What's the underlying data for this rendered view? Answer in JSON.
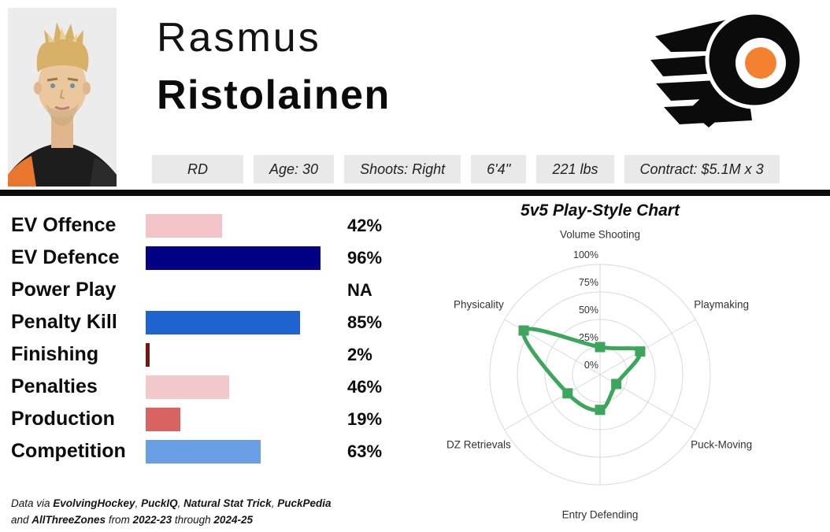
{
  "player": {
    "first_name": "Rasmus",
    "last_name": "Ristolainen",
    "photo": "player-headshot",
    "badges": [
      "RD",
      "Age: 30",
      "Shoots: Right",
      "6'4''",
      "221 lbs",
      "Contract: $5.1M x 3"
    ]
  },
  "team": {
    "logo": "philadelphia-flyers-winged-p",
    "color_black": "#0B0B0B",
    "color_orange": "#F3812F"
  },
  "chart_data": [
    {
      "type": "bar",
      "orientation": "horizontal",
      "title": "",
      "categories": [
        "EV Offence",
        "EV Defence",
        "Power Play",
        "Penalty Kill",
        "Finishing",
        "Penalties",
        "Production",
        "Competition"
      ],
      "values": [
        42,
        96,
        null,
        85,
        2,
        46,
        19,
        63
      ],
      "value_labels": [
        "42%",
        "96%",
        "NA",
        "85%",
        "2%",
        "46%",
        "19%",
        "63%"
      ],
      "bar_colors": [
        "#F2C4C8",
        "#010085",
        "",
        "#1F63D1",
        "#7A120D",
        "#F3CACC",
        "#D96262",
        "#699FE5"
      ],
      "xlim": [
        0,
        100
      ],
      "unit": "percentile",
      "grid": false
    },
    {
      "type": "radar",
      "title": "5v5 Play-Style Chart",
      "categories": [
        "Volume Shooting",
        "Playmaking",
        "Puck-Moving",
        "Entry Defending",
        "DZ Retrievals",
        "Physicality"
      ],
      "values": [
        25,
        42,
        17,
        32,
        34,
        80
      ],
      "radial_ticks": [
        "0%",
        "25%",
        "50%",
        "75%",
        "100%"
      ],
      "range": [
        0,
        100
      ],
      "line_color": "#3CA75C",
      "grid_color": "#D9D9D9",
      "label_color": "#333333",
      "grid": true,
      "legend": false
    }
  ],
  "footer": {
    "lines": [
      [
        {
          "t": "Data via ",
          "b": false
        },
        {
          "t": "EvolvingHockey",
          "b": true
        },
        {
          "t": ", ",
          "b": false
        },
        {
          "t": "PuckIQ",
          "b": true
        },
        {
          "t": ", ",
          "b": false
        },
        {
          "t": "Natural Stat Trick",
          "b": true
        },
        {
          "t": ", ",
          "b": false
        },
        {
          "t": "PuckPedia",
          "b": true
        }
      ],
      [
        {
          "t": "and ",
          "b": false
        },
        {
          "t": "AllThreeZones",
          "b": true
        },
        {
          "t": " from ",
          "b": false
        },
        {
          "t": "2022-23",
          "b": true
        },
        {
          "t": " through ",
          "b": false
        },
        {
          "t": "2024-25",
          "b": true
        }
      ]
    ]
  }
}
